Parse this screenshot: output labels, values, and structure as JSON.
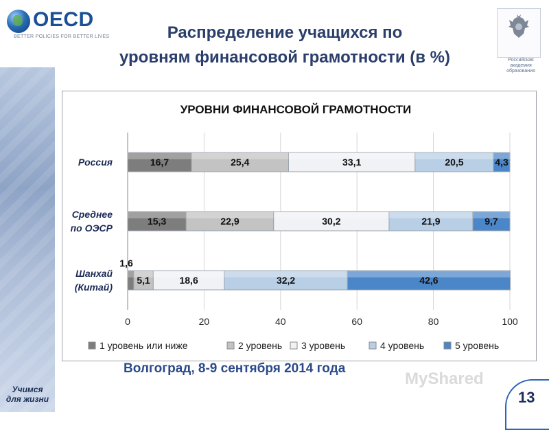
{
  "header": {
    "logo_name": "OECD",
    "logo_tagline": "BETTER POLICIES FOR BETTER LIVES",
    "title_line1": "Распределение учащихся по",
    "title_line2": "уровням финансовой грамотности (в %)",
    "emblem_text": "Российская академия образования"
  },
  "sidebar": {
    "caption_line1": "Учимся",
    "caption_line2": "для жизни"
  },
  "footer": {
    "event": "Волгоград, 8-9 сентября 2014 года",
    "page_number": "13",
    "watermark": "MyShared"
  },
  "chart_data": {
    "type": "bar",
    "orientation": "horizontal",
    "stacked": true,
    "title": "УРОВНИ ФИНАНСОВОЙ ГРАМОТНОСТИ",
    "categories": [
      "Россия",
      "Среднее по ОЭСР",
      "Шанхай (Китай)"
    ],
    "category_lines": [
      [
        "Россия"
      ],
      [
        "Среднее",
        "по ОЭСР"
      ],
      [
        "Шанхай",
        "(Китай)"
      ]
    ],
    "series": [
      {
        "name": "1 уровень или ниже",
        "values": [
          16.7,
          15.3,
          1.6
        ],
        "labels": [
          "16,7",
          "15,3",
          "1,6"
        ],
        "color": "#7d7d7d"
      },
      {
        "name": "2 уровень",
        "values": [
          25.4,
          22.9,
          5.1
        ],
        "labels": [
          "25,4",
          "22,9",
          "5,1"
        ],
        "color": "#c3c3c3"
      },
      {
        "name": "3 уровень",
        "values": [
          33.1,
          30.2,
          18.6
        ],
        "labels": [
          "33,1",
          "30,2",
          "18,6"
        ],
        "color": "#f0f2f5"
      },
      {
        "name": "4 уровень",
        "values": [
          20.5,
          21.9,
          32.2
        ],
        "labels": [
          "20,5",
          "21,9",
          "32,2"
        ],
        "color": "#b9cfe6"
      },
      {
        "name": "5 уровень",
        "values": [
          4.3,
          9.7,
          42.6
        ],
        "labels": [
          "4,3",
          "9,7",
          "42,6"
        ],
        "color": "#4a86c8"
      }
    ],
    "x_ticks": [
      "0",
      "20",
      "40",
      "60",
      "80",
      "100"
    ],
    "xlim": [
      0,
      100
    ],
    "grid": true,
    "legend_position": "bottom"
  }
}
